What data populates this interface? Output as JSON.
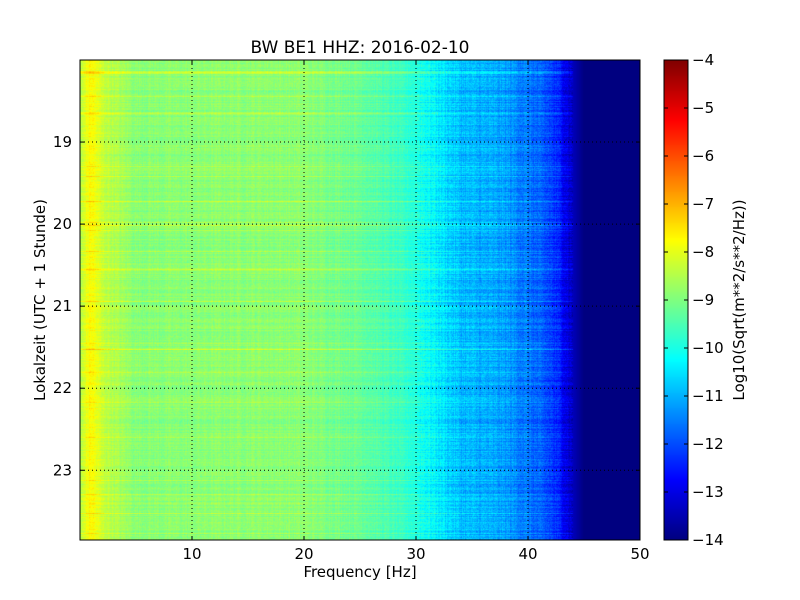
{
  "chart_data": {
    "type": "heatmap",
    "title": "BW BE1 HHZ: 2016-02-10",
    "xlabel": "Frequency [Hz]",
    "ylabel": "Lokalzeit (UTC + 1 Stunde)",
    "xlim": [
      0,
      50
    ],
    "ylim": [
      18.0,
      23.85
    ],
    "x_ticks": [
      10,
      20,
      30,
      40,
      50
    ],
    "y_ticks": [
      19,
      20,
      21,
      22,
      23
    ],
    "grid": true,
    "colormap": "jet",
    "colorbar": {
      "label": "Log10(Sqrt(m**2/s**2/Hz))",
      "vmin": -14,
      "vmax": -4,
      "ticks": [
        -4,
        -5,
        -6,
        -7,
        -8,
        -9,
        -10,
        -11,
        -12,
        -13,
        -14
      ]
    },
    "spectrum_profile": {
      "frequency_hz": [
        0,
        0.5,
        1,
        2,
        5,
        10,
        15,
        20,
        25,
        30,
        32,
        34,
        38,
        40,
        42,
        43,
        44,
        45,
        50
      ],
      "log10_amplitude": [
        -8.6,
        -8.0,
        -7.7,
        -8.3,
        -8.9,
        -8.9,
        -8.85,
        -8.9,
        -9.2,
        -9.9,
        -10.4,
        -10.9,
        -11.2,
        -11.6,
        -12.1,
        -12.6,
        -13.4,
        -14,
        -14
      ]
    },
    "notable_bands": [
      {
        "time": 18.15,
        "log10_amplitude_offset": 0.8
      },
      {
        "time": 18.65,
        "log10_amplitude_offset": 0.6
      },
      {
        "time": 20.55,
        "log10_amplitude_offset": 0.5
      },
      {
        "time": 21.8,
        "log10_amplitude_offset": 0.4
      },
      {
        "time": 23.4,
        "log10_amplitude_offset": 0.4
      }
    ]
  }
}
